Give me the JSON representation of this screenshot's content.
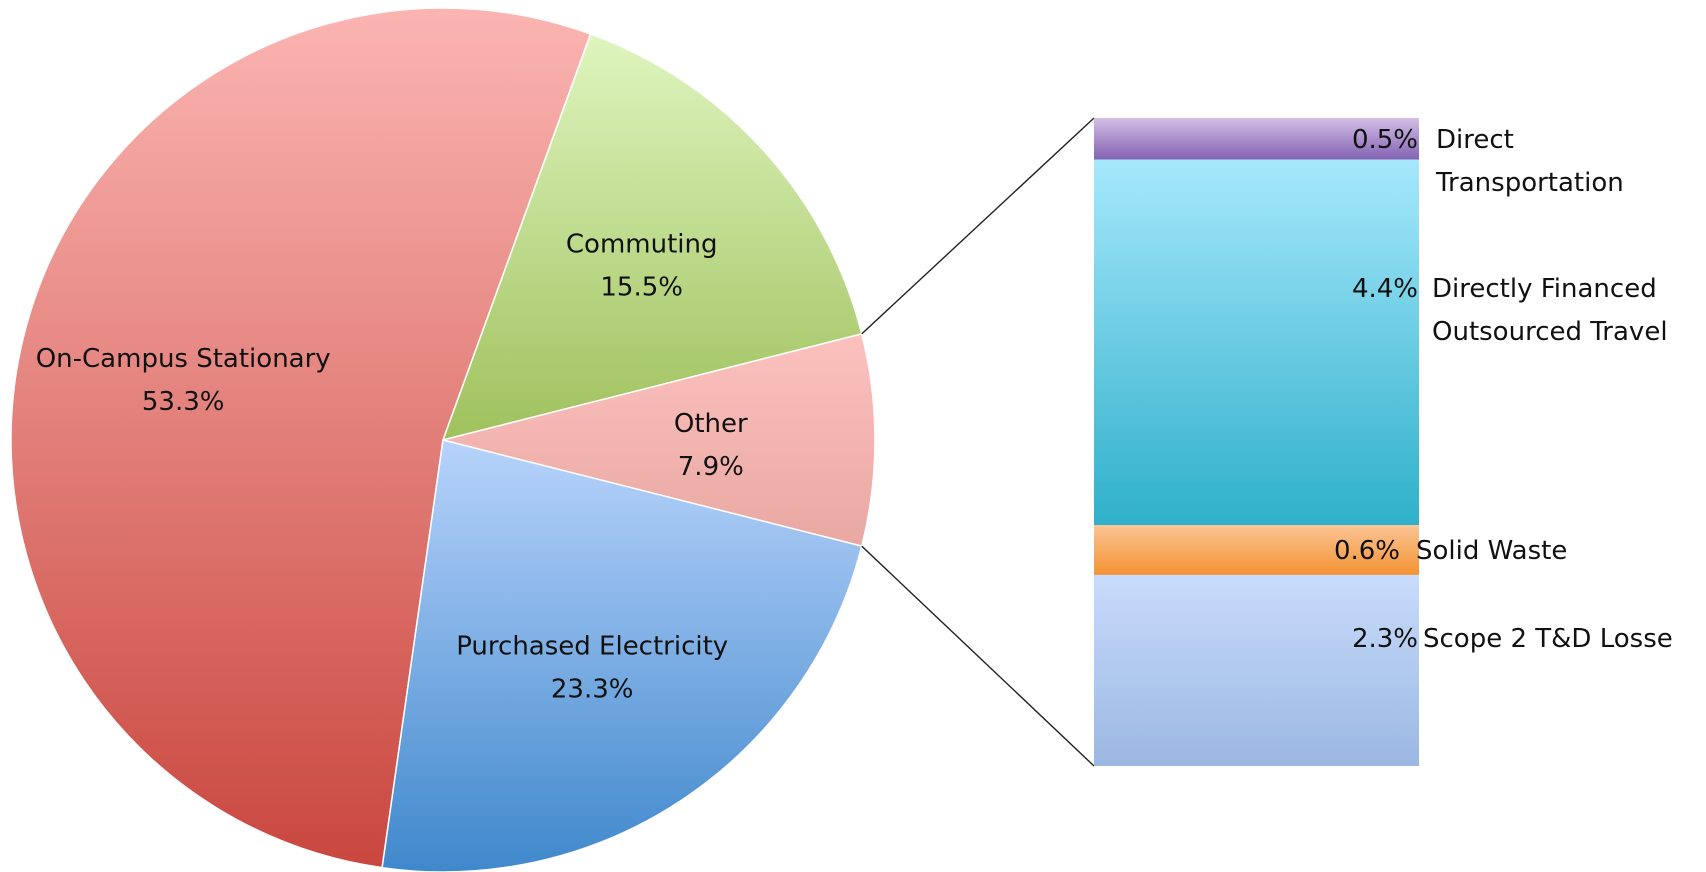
{
  "chart_data": {
    "type": "pie",
    "title": "",
    "slices": [
      {
        "label": "On-Campus Stationary",
        "value": 53.3,
        "value_label": "53.3%",
        "color_light": "#fbb5b2",
        "color_dark": "#c9473f"
      },
      {
        "label": "Commuting",
        "value": 15.5,
        "value_label": "15.5%",
        "color_light": "#dff5bf",
        "color_dark": "#9fc15d"
      },
      {
        "label": "Other",
        "value": 7.9,
        "value_label": "7.9%",
        "color_light": "#fcc1be",
        "color_dark": "#e9a8a2"
      },
      {
        "label": "Purchased Electricity",
        "value": 23.3,
        "value_label": "23.3%",
        "color_light": "#b8d3fb",
        "color_dark": "#3f88cc"
      }
    ],
    "breakdown_of": "Other",
    "breakdown": [
      {
        "label_lines": [
          "Direct",
          "Transportation"
        ],
        "value": 0.5,
        "value_label": "0.5%",
        "color_light": "#d3bfe6",
        "color_dark": "#8361b2"
      },
      {
        "label_lines": [
          "Directly Financed",
          "Outsourced Travel"
        ],
        "value": 4.4,
        "value_label": "4.4%",
        "color_light": "#a6e8fc",
        "color_dark": "#2fb0ca"
      },
      {
        "label_lines": [
          "Solid Waste"
        ],
        "value": 0.6,
        "value_label": "0.6%",
        "color_light": "#fcc595",
        "color_dark": "#f39332"
      },
      {
        "label_lines": [
          "Scope 2 T&D Losse"
        ],
        "value": 2.3,
        "value_label": "2.3%",
        "color_light": "#c8dcfc",
        "color_dark": "#9bb7e2"
      }
    ]
  }
}
